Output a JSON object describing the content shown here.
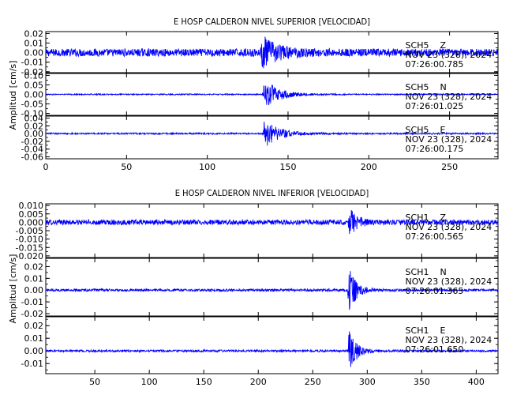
{
  "chart_data": [
    {
      "type": "line",
      "title": "E HOSP CALDERON NIVEL SUPERIOR [VELOCIDAD]",
      "ylabel": "Amplitud [cm/s]",
      "xlim": [
        0,
        280
      ],
      "xticks": [
        "0",
        "50",
        "100",
        "150",
        "200",
        "250"
      ],
      "xtick_values": [
        0,
        50,
        100,
        150,
        200,
        250
      ],
      "trace_color": "#0000ff",
      "panels": [
        {
          "ylim": [
            -0.021,
            0.022
          ],
          "yticks": [
            "0.02",
            "0.01",
            "0.00",
            "-0.01",
            "-0.02"
          ],
          "ytick_values": [
            0.02,
            0.01,
            0,
            -0.01,
            -0.02
          ],
          "station": "SCH5",
          "component": "Z",
          "date": "NOV 23 (328), 2024",
          "time": "07:26:00.785",
          "event_onset": 133,
          "peak_amplitude": 0.018,
          "noise_amplitude": 0.004
        },
        {
          "ylim": [
            -0.11,
            0.11
          ],
          "yticks": [
            "0.10",
            "0.05",
            "0.00",
            "-0.05",
            "-0.10"
          ],
          "ytick_values": [
            0.1,
            0.05,
            0,
            -0.05,
            -0.1
          ],
          "station": "SCH5",
          "component": "N",
          "date": "NOV 23 (328), 2024",
          "time": "07:26:01.025",
          "event_onset": 134,
          "peak_amplitude": 0.09,
          "noise_amplitude": 0.003
        },
        {
          "ylim": [
            -0.065,
            0.045
          ],
          "yticks": [
            "0.04",
            "0.02",
            "0.00",
            "-0.02",
            "-0.04",
            "-0.06"
          ],
          "ytick_values": [
            0.04,
            0.02,
            0,
            -0.02,
            -0.04,
            -0.06
          ],
          "station": "SCH5",
          "component": "E",
          "date": "NOV 23 (328), 2024",
          "time": "07:26:00.175",
          "event_onset": 134,
          "peak_amplitude": 0.042,
          "noise_amplitude": 0.002
        }
      ]
    },
    {
      "type": "line",
      "title": "E HOSP CALDERON NIVEL INFERIOR [VELOCIDAD]",
      "ylabel": "Amplitud [cm/s]",
      "xlim": [
        5,
        420
      ],
      "xticks": [
        "50",
        "100",
        "150",
        "200",
        "250",
        "300",
        "350",
        "400"
      ],
      "xtick_values": [
        50,
        100,
        150,
        200,
        250,
        300,
        350,
        400
      ],
      "trace_color": "#0000ff",
      "panels": [
        {
          "ylim": [
            -0.021,
            0.011
          ],
          "yticks": [
            "0.010",
            "0.005",
            "0.000",
            "-0.005",
            "-0.010",
            "-0.015",
            "-0.020"
          ],
          "ytick_values": [
            0.01,
            0.005,
            0,
            -0.005,
            -0.01,
            -0.015,
            -0.02
          ],
          "station": "SCH1",
          "component": "Z",
          "date": "NOV 23 (328), 2024",
          "time": "07:26:00.565",
          "event_onset": 282,
          "peak_amplitude": 0.01,
          "noise_amplitude": 0.0015
        },
        {
          "ylim": [
            -0.022,
            0.027
          ],
          "yticks": [
            "0.02",
            "0.01",
            "0.00",
            "-0.01",
            "-0.02"
          ],
          "ytick_values": [
            0.02,
            0.01,
            0,
            -0.01,
            -0.02
          ],
          "station": "SCH1",
          "component": "N",
          "date": "NOV 23 (328), 2024",
          "time": "07:26:01.365",
          "event_onset": 282,
          "peak_amplitude": 0.022,
          "noise_amplitude": 0.001
        },
        {
          "ylim": [
            -0.018,
            0.027
          ],
          "yticks": [
            "0.02",
            "0.01",
            "0.00",
            "-0.01"
          ],
          "ytick_values": [
            0.02,
            0.01,
            0,
            -0.01
          ],
          "station": "SCH1",
          "component": "E",
          "date": "NOV 23 (328), 2024",
          "time": "07:26:01.650",
          "event_onset": 282,
          "peak_amplitude": 0.02,
          "noise_amplitude": 0.0008
        }
      ]
    }
  ]
}
